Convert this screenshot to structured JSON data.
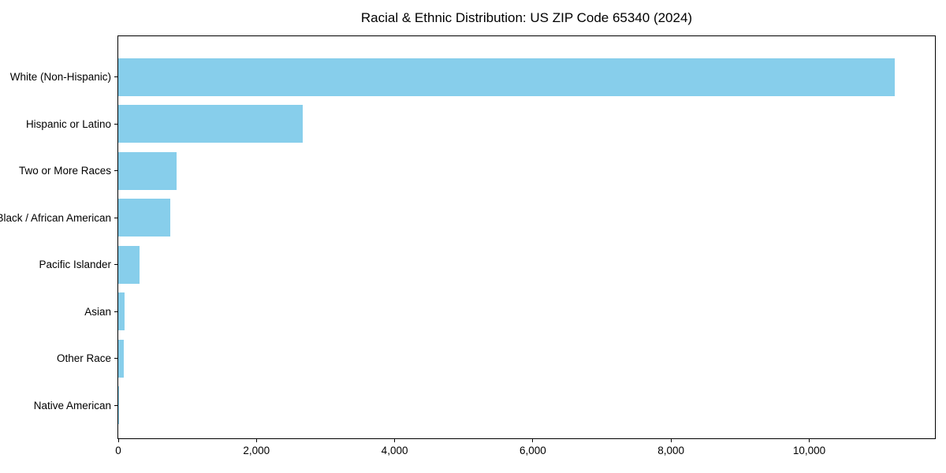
{
  "title": "Racial & Ethnic Distribution: US ZIP Code 65340 (2024)",
  "chart_data": {
    "type": "bar",
    "orientation": "horizontal",
    "title": "Racial & Ethnic Distribution: US ZIP Code 65340 (2024)",
    "xlabel": "",
    "ylabel": "",
    "categories": [
      "White (Non-Hispanic)",
      "Hispanic or Latino",
      "Two or More Races",
      "Black / African American",
      "Pacific Islander",
      "Asian",
      "Other Race",
      "Native American"
    ],
    "values": [
      11240,
      2675,
      845,
      750,
      310,
      90,
      80,
      10
    ],
    "bar_color": "#87CEEB",
    "xlim": [
      0,
      11820
    ],
    "x_ticks": [
      0,
      2000,
      4000,
      6000,
      8000,
      10000
    ],
    "x_tick_labels": [
      "0",
      "2,000",
      "4,000",
      "6,000",
      "8,000",
      "10,000"
    ],
    "grid": false,
    "legend": null,
    "plot_background": "#ffffff",
    "frame_color": "#000000"
  }
}
